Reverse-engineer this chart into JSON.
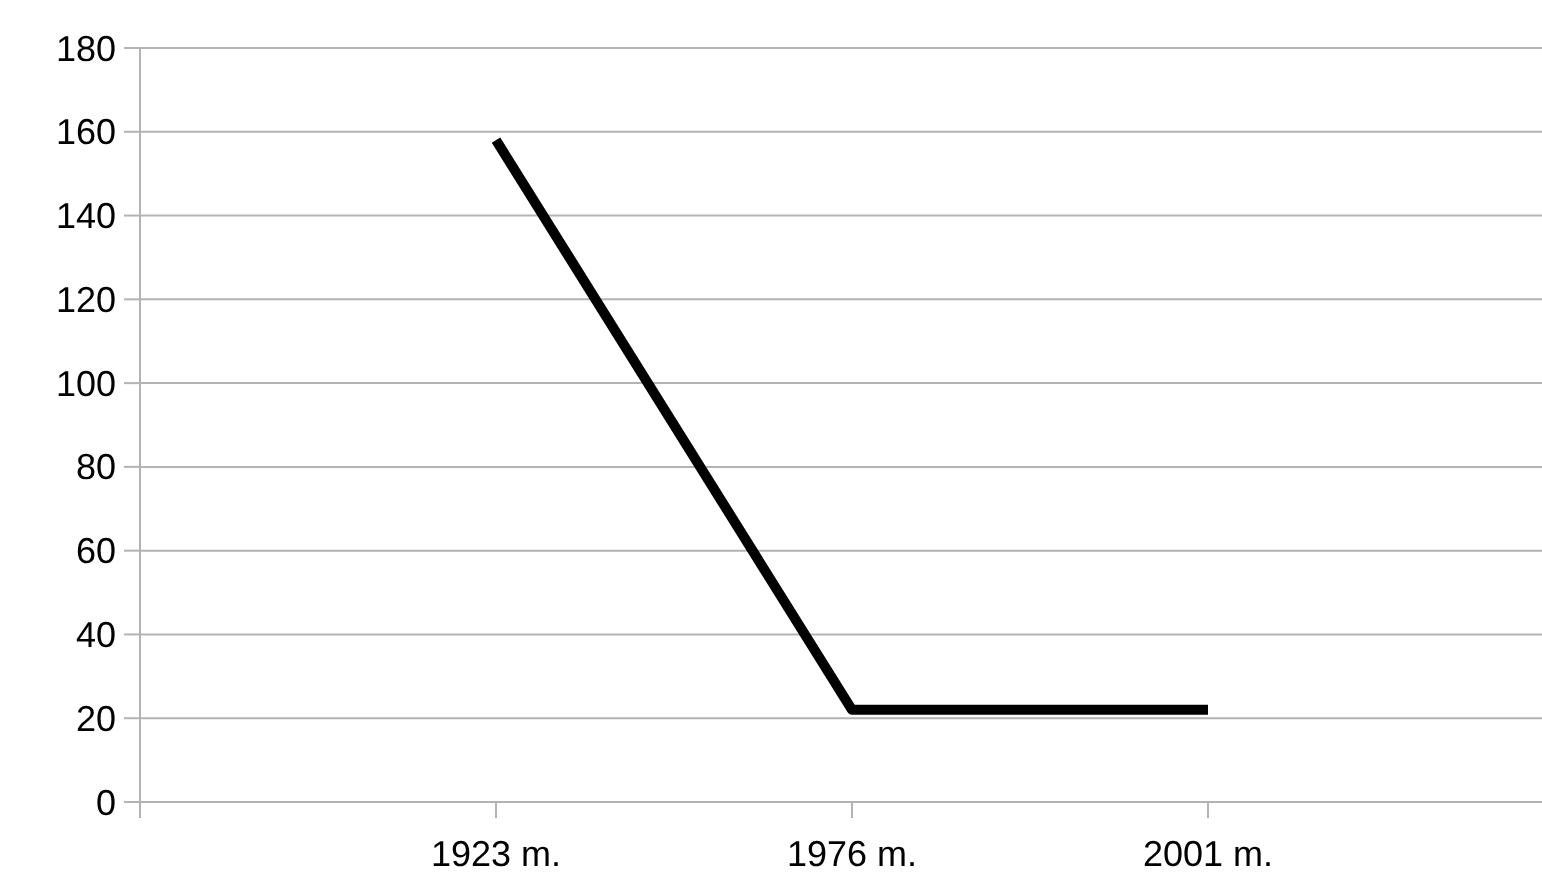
{
  "chart_data": {
    "type": "line",
    "categories": [
      null,
      "1923 m.",
      "1976 m.",
      "2001 m.",
      null
    ],
    "series": [
      {
        "color": "#000000",
        "values": [
          null,
          158,
          22,
          22,
          null
        ]
      }
    ],
    "ylim": [
      0,
      180
    ],
    "yticks": [
      0,
      20,
      40,
      60,
      80,
      100,
      120,
      140,
      160,
      180
    ],
    "grid": "y",
    "marker": "none",
    "line_style": "solid"
  }
}
